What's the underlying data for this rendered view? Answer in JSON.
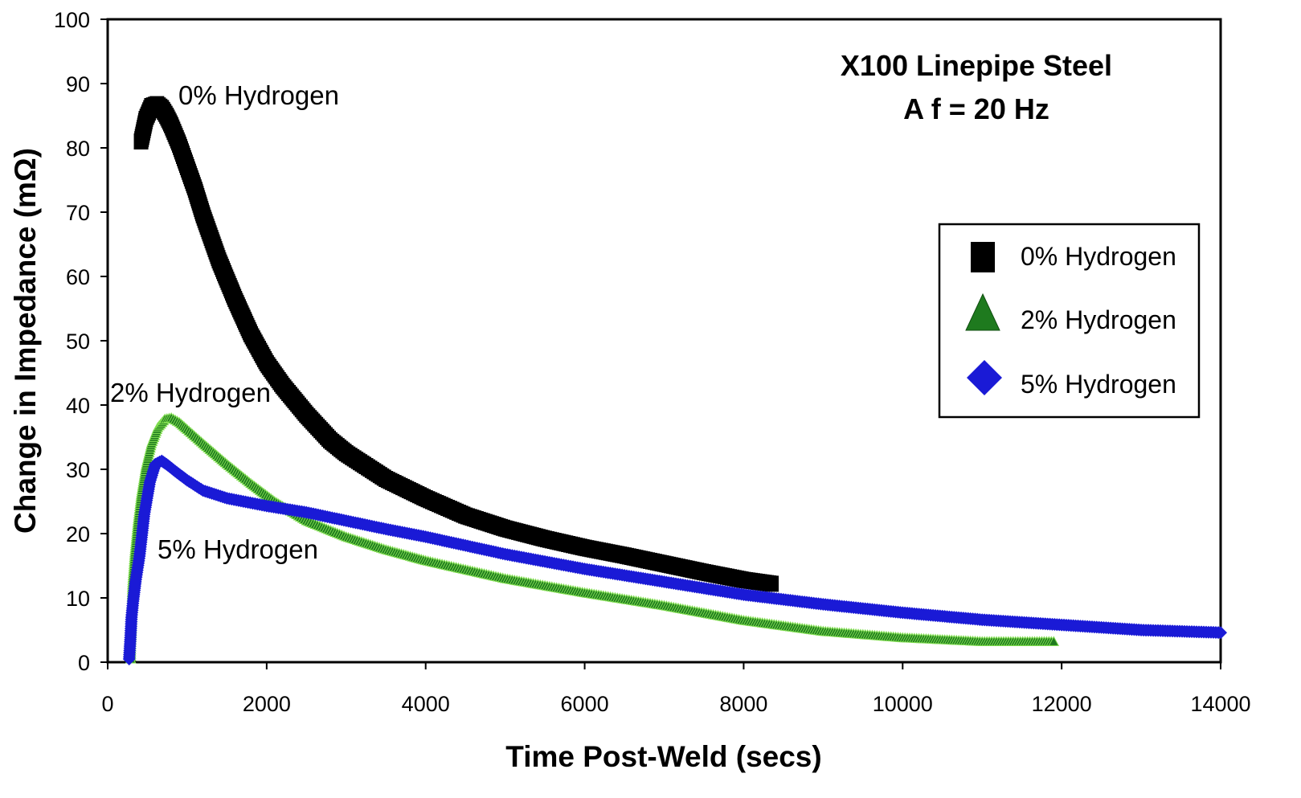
{
  "chart_data": {
    "type": "scatter",
    "title": "X100 Linepipe Steel",
    "subtitle": "A f = 20 Hz",
    "xlabel": "Time Post-Weld (secs)",
    "ylabel": "Change in Impedance (mΩ)",
    "xlim": [
      0,
      14000
    ],
    "ylim": [
      0,
      100
    ],
    "xticks": [
      "0",
      "2000",
      "4000",
      "6000",
      "8000",
      "10000",
      "12000",
      "14000"
    ],
    "yticks": [
      "0",
      "10",
      "20",
      "30",
      "40",
      "50",
      "60",
      "70",
      "80",
      "90",
      "100"
    ],
    "grid": false,
    "legend_position": "right",
    "series": [
      {
        "name": "0% Hydrogen",
        "marker": "square",
        "color": "#000000",
        "annotation": "0% Hydrogen",
        "x": [
          420,
          480,
          550,
          620,
          680,
          740,
          800,
          900,
          1000,
          1100,
          1200,
          1400,
          1600,
          1800,
          2000,
          2200,
          2500,
          2800,
          3000,
          3500,
          4000,
          4500,
          5000,
          5500,
          6000,
          6500,
          7000,
          7500,
          8000,
          8350
        ],
        "y": [
          81,
          84.5,
          86.5,
          86.8,
          86.2,
          85,
          83.5,
          80.5,
          77,
          73.5,
          69.5,
          62.5,
          56.5,
          51,
          46.5,
          43,
          38.5,
          34.5,
          32.5,
          28.5,
          25.5,
          22.8,
          20.8,
          19.2,
          17.8,
          16.6,
          15.3,
          14,
          12.8,
          12.2
        ]
      },
      {
        "name": "2% Hydrogen",
        "marker": "triangle",
        "color": "#1e7a1e",
        "annotation": "2% Hydrogen",
        "x": [
          290,
          310,
          340,
          380,
          420,
          480,
          550,
          630,
          720,
          800,
          900,
          1000,
          1200,
          1500,
          1800,
          2100,
          2500,
          3000,
          3500,
          4000,
          5000,
          6000,
          7000,
          8000,
          9000,
          10000,
          11000,
          11900
        ],
        "y": [
          0.5,
          12,
          17,
          22,
          26,
          30.5,
          34,
          36.5,
          37.8,
          38,
          37.3,
          36.2,
          34,
          30.8,
          27.8,
          25,
          22,
          19.5,
          17.5,
          15.8,
          13,
          10.8,
          8.8,
          6.5,
          4.8,
          3.8,
          3.2,
          3.2
        ]
      },
      {
        "name": "5% Hydrogen",
        "marker": "diamond",
        "color": "#1a1ad6",
        "annotation": "5% Hydrogen",
        "x": [
          270,
          285,
          300,
          320,
          350,
          400,
          460,
          530,
          600,
          680,
          760,
          850,
          1000,
          1200,
          1500,
          2000,
          2500,
          3000,
          3500,
          4000,
          5000,
          6000,
          7000,
          8000,
          9000,
          10000,
          11000,
          12000,
          13000,
          14000
        ],
        "y": [
          0.5,
          3.5,
          7,
          9.5,
          12.5,
          16.5,
          23,
          28,
          30.8,
          31.3,
          30.6,
          29.7,
          28.3,
          26.7,
          25.5,
          24.3,
          23.3,
          22,
          20.7,
          19.5,
          16.8,
          14.5,
          12.5,
          10.5,
          9,
          7.7,
          6.6,
          5.8,
          5,
          4.6
        ]
      }
    ]
  }
}
